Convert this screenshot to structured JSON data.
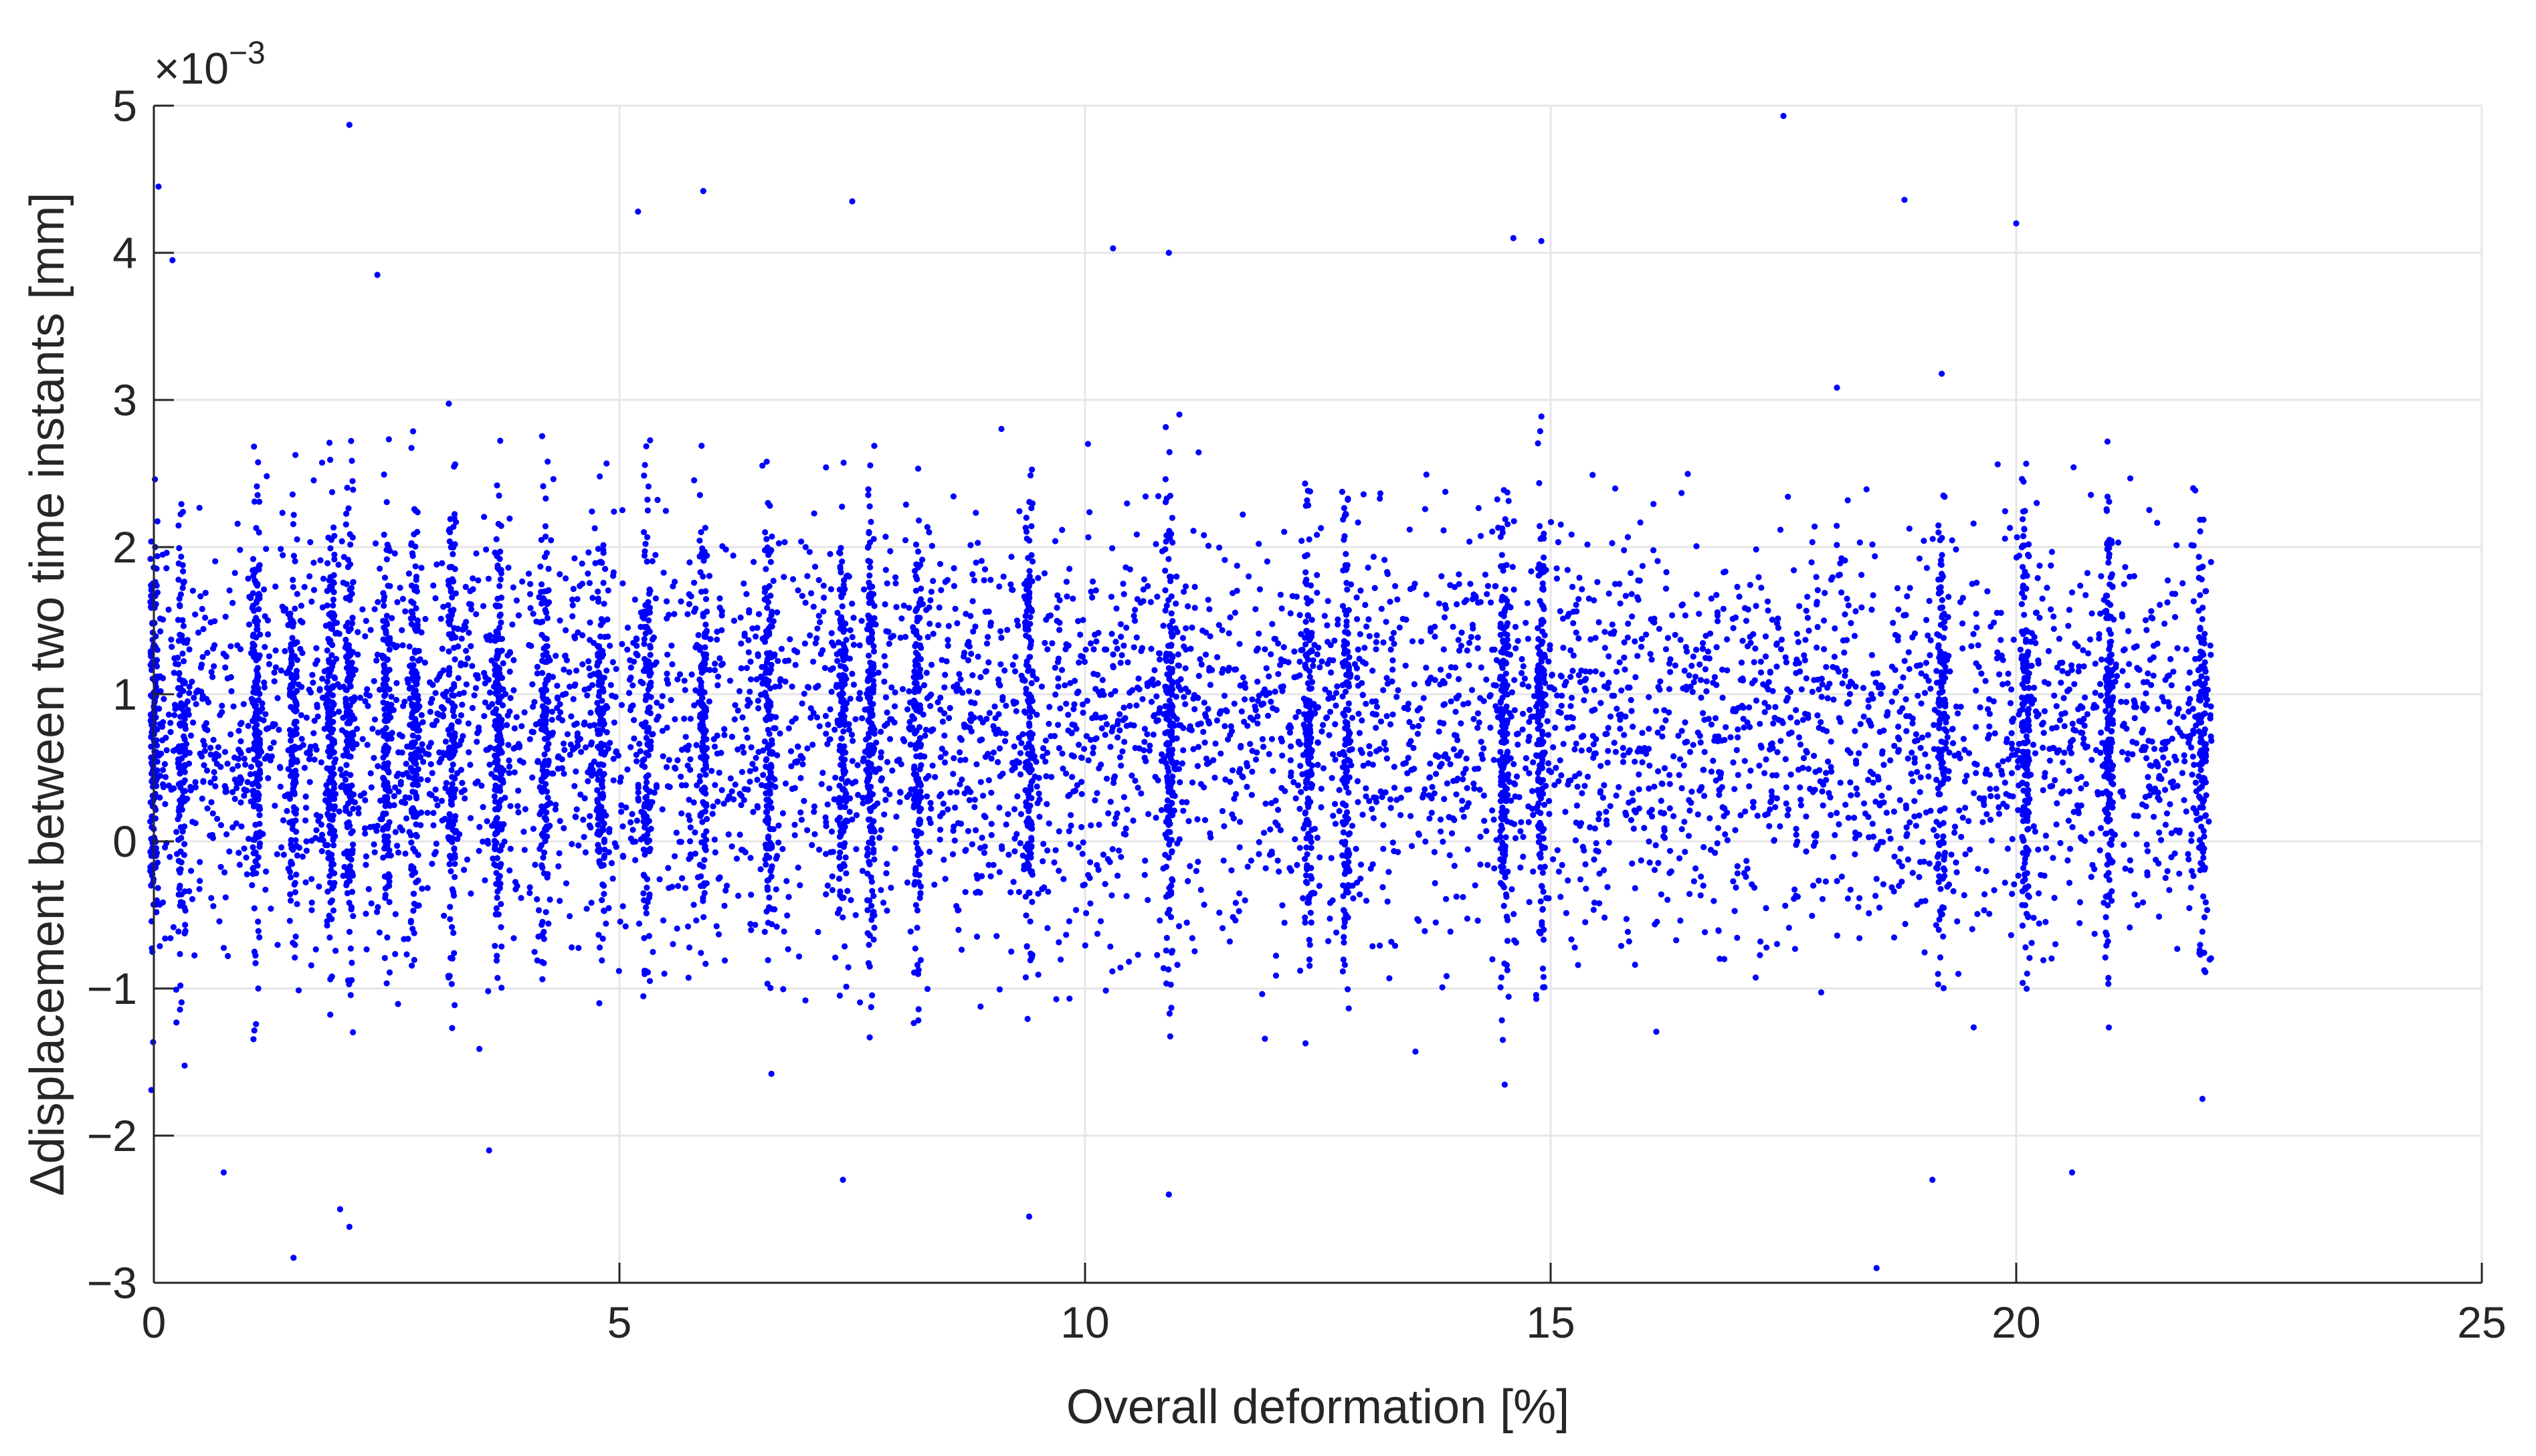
{
  "chart_data": {
    "type": "scatter",
    "title": "",
    "xlabel": "Overall deformation [%]",
    "ylabel": "Δdisplacement between two time instants [mm]",
    "y_exponent_base": "×10",
    "y_exponent_power": "−3",
    "xlim": [
      0,
      25
    ],
    "ylim": [
      -3,
      5
    ],
    "y_scale_factor": 0.001,
    "x_ticks": [
      "0",
      "5",
      "10",
      "15",
      "20",
      "25"
    ],
    "y_ticks": [
      "−3",
      "−2",
      "−1",
      "0",
      "1",
      "2",
      "3",
      "4",
      "5"
    ],
    "grid": true,
    "legend": "none",
    "marker_color": "#0000ff",
    "series": [
      {
        "name": "",
        "dense_columns_x": [
          0.0,
          0.3,
          1.1,
          1.5,
          1.9,
          2.1,
          2.5,
          2.8,
          3.2,
          3.7,
          4.2,
          4.8,
          5.3,
          5.9,
          6.6,
          7.4,
          7.7,
          8.2,
          9.4,
          10.9,
          12.4,
          12.8,
          14.5,
          14.9,
          19.2,
          20.1,
          21.0,
          22.0
        ],
        "x_range": [
          0,
          22.1
        ],
        "y_center": 0.75,
        "y_spread": 1.1,
        "point_count_estimate": 12000,
        "points": [
          {
            "x": 0.05,
            "y": 4.45
          },
          {
            "x": 0.2,
            "y": 3.95
          },
          {
            "x": 2.1,
            "y": 4.87
          },
          {
            "x": 2.4,
            "y": 3.85
          },
          {
            "x": 5.2,
            "y": 4.28
          },
          {
            "x": 5.9,
            "y": 4.42
          },
          {
            "x": 7.5,
            "y": 4.35
          },
          {
            "x": 10.9,
            "y": 4.0
          },
          {
            "x": 10.3,
            "y": 4.03
          },
          {
            "x": 14.6,
            "y": 4.1
          },
          {
            "x": 14.9,
            "y": 4.08
          },
          {
            "x": 17.5,
            "y": 4.93
          },
          {
            "x": 18.8,
            "y": 4.36
          },
          {
            "x": 20.0,
            "y": 4.2
          },
          {
            "x": 1.5,
            "y": -2.83
          },
          {
            "x": 2.1,
            "y": -2.62
          },
          {
            "x": 2.0,
            "y": -2.5
          },
          {
            "x": 7.4,
            "y": -2.3
          },
          {
            "x": 9.4,
            "y": -2.55
          },
          {
            "x": 10.9,
            "y": -2.4
          },
          {
            "x": 18.5,
            "y": -2.9
          },
          {
            "x": 19.1,
            "y": -2.3
          },
          {
            "x": 20.6,
            "y": -2.25
          },
          {
            "x": 22.0,
            "y": -1.75
          },
          {
            "x": 0.75,
            "y": -2.25
          },
          {
            "x": 3.6,
            "y": -2.1
          }
        ]
      }
    ]
  }
}
